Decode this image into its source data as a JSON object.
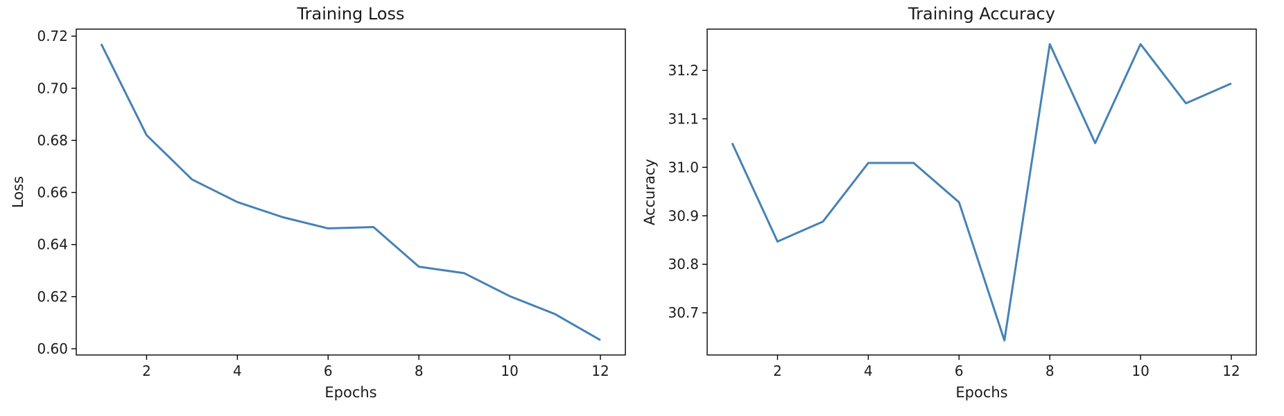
{
  "chart_data": [
    {
      "type": "line",
      "title": "Training Loss",
      "xlabel": "Epochs",
      "ylabel": "Loss",
      "x": [
        1,
        2,
        3,
        4,
        5,
        6,
        7,
        8,
        9,
        10,
        11,
        12
      ],
      "series": [
        {
          "values": [
            0.717,
            0.682,
            0.665,
            0.6563,
            0.6505,
            0.6462,
            0.6467,
            0.6315,
            0.629,
            0.6202,
            0.6133,
            0.6033
          ]
        }
      ],
      "xlim": [
        0.45,
        12.55
      ],
      "ylim": [
        0.5976,
        0.7227
      ],
      "xticks": [
        2,
        4,
        6,
        8,
        10,
        12
      ],
      "xtick_labels": [
        "2",
        "4",
        "6",
        "8",
        "10",
        "12"
      ],
      "yticks": [
        0.6,
        0.62,
        0.64,
        0.66,
        0.68,
        0.7,
        0.72
      ],
      "ytick_labels": [
        "0.60",
        "0.62",
        "0.64",
        "0.66",
        "0.68",
        "0.70",
        "0.72"
      ],
      "grid": false,
      "color": "#4682b4"
    },
    {
      "type": "line",
      "title": "Training Accuracy",
      "xlabel": "Epochs",
      "ylabel": "Accuracy",
      "x": [
        1,
        2,
        3,
        4,
        5,
        6,
        7,
        8,
        9,
        10,
        11,
        12
      ],
      "series": [
        {
          "values": [
            31.05,
            30.847,
            30.888,
            31.009,
            31.009,
            30.928,
            30.643,
            31.254,
            31.05,
            31.254,
            31.132,
            31.173
          ]
        }
      ],
      "xlim": [
        0.45,
        12.55
      ],
      "ylim": [
        30.613,
        31.285
      ],
      "xticks": [
        2,
        4,
        6,
        8,
        10,
        12
      ],
      "xtick_labels": [
        "2",
        "4",
        "6",
        "8",
        "10",
        "12"
      ],
      "yticks": [
        30.7,
        30.8,
        30.9,
        31.0,
        31.1,
        31.2
      ],
      "ytick_labels": [
        "30.7",
        "30.8",
        "30.9",
        "31.0",
        "31.1",
        "31.2"
      ],
      "grid": false,
      "color": "#4682b4"
    }
  ]
}
